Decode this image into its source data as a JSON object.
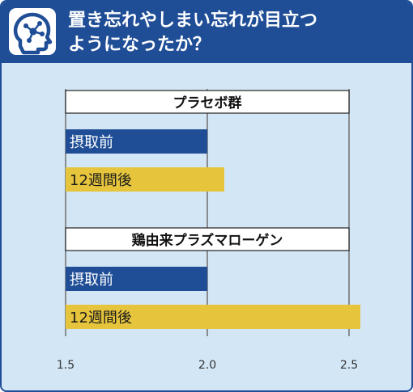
{
  "header": {
    "title_line1": "置き忘れやしまい忘れが目立つ",
    "title_line2": "ようになったか？",
    "icon": "head-brain-icon"
  },
  "chart_data": {
    "type": "bar",
    "orientation": "horizontal",
    "xlim": [
      1.5,
      2.5
    ],
    "x_ticks": [
      "1.5",
      "2.0",
      "2.5"
    ],
    "grid": true,
    "groups": [
      {
        "name": "プラセボ群",
        "bars": [
          {
            "label": "摂取前",
            "value": 2.0,
            "color": "#1f4e97"
          },
          {
            "label": "12週間後",
            "value": 2.06,
            "color": "#e6c53d"
          }
        ]
      },
      {
        "name": "鶏由来プラズマローゲン",
        "bars": [
          {
            "label": "摂取前",
            "value": 2.0,
            "color": "#1f4e97"
          },
          {
            "label": "12週間後",
            "value": 2.54,
            "color": "#e6c53d"
          }
        ]
      }
    ]
  },
  "colors": {
    "header": "#1f4e97",
    "background": "#d3e6f5",
    "before": "#1f4e97",
    "after": "#e6c53d"
  }
}
